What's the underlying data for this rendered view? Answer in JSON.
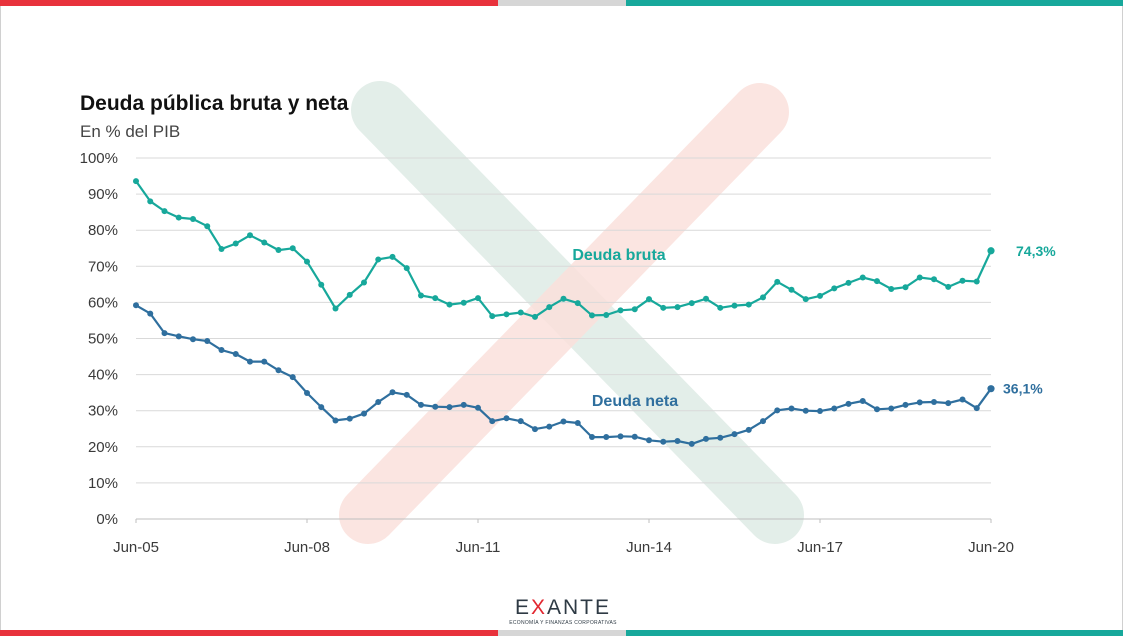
{
  "colors": {
    "bruta": "#17a89b",
    "neta": "#2f6f9e",
    "grid": "#d9d9d9",
    "band_red": "#e8323c",
    "band_gray": "#d6d6d6",
    "band_teal": "#17a89b",
    "watermark_teal": "#e3eee9",
    "watermark_red": "#fbe1dc"
  },
  "header": {
    "title": "Deuda pública bruta y neta",
    "subtitle": "En % del PIB"
  },
  "chart_data": {
    "type": "line",
    "title": "Deuda pública bruta y neta",
    "subtitle": "En % del PIB",
    "xlabel": "",
    "ylabel": "",
    "ylim": [
      0,
      100
    ],
    "y_ticks": [
      "0%",
      "10%",
      "20%",
      "30%",
      "40%",
      "50%",
      "60%",
      "70%",
      "80%",
      "90%",
      "100%"
    ],
    "x_tick_labels": [
      "Jun-05",
      "Jun-08",
      "Jun-11",
      "Jun-14",
      "Jun-17",
      "Jun-20"
    ],
    "frequency": "quarterly",
    "grid": true,
    "series": [
      {
        "name": "Deuda bruta",
        "end_label": "74,3%",
        "values": [
          93.6,
          88.0,
          85.3,
          83.5,
          83.1,
          81.1,
          74.8,
          76.3,
          78.6,
          76.6,
          74.5,
          75.0,
          71.3,
          64.9,
          58.3,
          62.1,
          65.5,
          71.9,
          72.6,
          69.5,
          61.9,
          61.2,
          59.4,
          59.9,
          61.2,
          56.2,
          56.7,
          57.2,
          56.0,
          58.7,
          61.0,
          59.8,
          56.4,
          56.5,
          57.8,
          58.1,
          60.9,
          58.5,
          58.7,
          59.8,
          61.0,
          58.5,
          59.1,
          59.4,
          61.4,
          65.7,
          63.5,
          60.9,
          61.8,
          63.9,
          65.4,
          66.9,
          65.9,
          63.7,
          64.2,
          66.9,
          66.4,
          64.3,
          66.0,
          65.8,
          74.3
        ]
      },
      {
        "name": "Deuda neta",
        "end_label": "36,1%",
        "values": [
          59.2,
          56.9,
          51.5,
          50.6,
          49.8,
          49.3,
          46.8,
          45.7,
          43.6,
          43.6,
          41.2,
          39.3,
          34.9,
          31.0,
          27.3,
          27.8,
          29.2,
          32.4,
          35.1,
          34.4,
          31.6,
          31.1,
          31.0,
          31.6,
          30.8,
          27.1,
          27.9,
          27.1,
          24.9,
          25.6,
          27.0,
          26.6,
          22.7,
          22.7,
          22.9,
          22.8,
          21.8,
          21.4,
          21.6,
          20.8,
          22.2,
          22.5,
          23.5,
          24.7,
          27.1,
          30.1,
          30.6,
          30.0,
          29.9,
          30.6,
          31.9,
          32.7,
          30.4,
          30.6,
          31.6,
          32.3,
          32.4,
          32.1,
          33.1,
          30.7,
          36.1
        ]
      }
    ],
    "annotations": [
      "Deuda bruta",
      "Deuda neta",
      "74,3%",
      "36,1%"
    ]
  },
  "logo": {
    "word_parts": [
      "E",
      "X",
      "ANTE"
    ],
    "tagline": "ECONOMÍA Y FINANZAS CORPORATIVAS"
  }
}
